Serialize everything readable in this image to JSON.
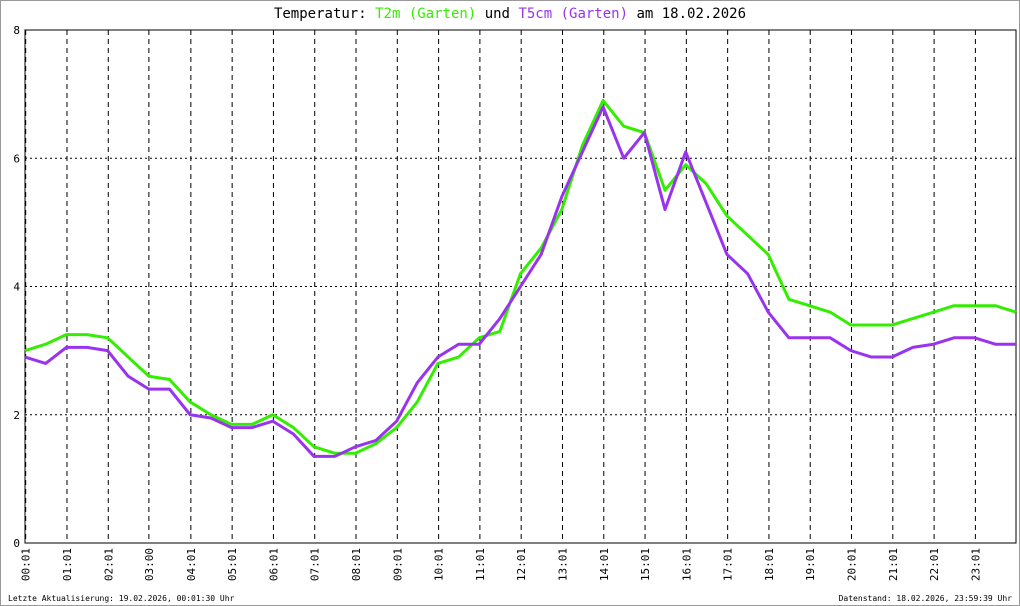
{
  "chart_data": {
    "type": "line",
    "title_prefix": "Temperatur:",
    "title_joiner": "und",
    "title_suffix": "am 18.02.2026",
    "footer_left": "Letzte Aktualisierung: 19.02.2026, 00:01:30 Uhr",
    "footer_right": "Datenstand: 18.02.2026, 23:59:39 Uhr",
    "x": [
      0,
      30,
      60,
      90,
      120,
      150,
      180,
      210,
      240,
      270,
      300,
      330,
      360,
      390,
      420,
      450,
      480,
      510,
      540,
      570,
      600,
      630,
      660,
      690,
      720,
      750,
      780,
      810,
      840,
      870,
      900,
      930,
      960,
      990,
      1020,
      1050,
      1080,
      1110,
      1140,
      1170,
      1200,
      1230,
      1260,
      1290,
      1320,
      1350,
      1380,
      1410,
      1440
    ],
    "series": [
      {
        "name": "T2m (Garten)",
        "color": "#33ee00",
        "values": [
          3.0,
          3.1,
          3.25,
          3.25,
          3.2,
          2.9,
          2.6,
          2.55,
          2.2,
          2.0,
          1.85,
          1.85,
          2.0,
          1.8,
          1.5,
          1.4,
          1.4,
          1.55,
          1.8,
          2.2,
          2.8,
          2.9,
          3.2,
          3.3,
          4.2,
          4.6,
          5.2,
          6.2,
          6.9,
          6.5,
          6.4,
          5.5,
          5.9,
          5.6,
          5.1,
          4.8,
          4.5,
          3.8,
          3.7,
          3.6,
          3.4,
          3.4,
          3.4,
          3.5,
          3.6,
          3.7,
          3.7,
          3.7,
          3.6
        ]
      },
      {
        "name": "T5cm (Garten)",
        "color": "#9933ee",
        "values": [
          2.9,
          2.8,
          3.05,
          3.05,
          3.0,
          2.6,
          2.4,
          2.4,
          2.0,
          1.95,
          1.8,
          1.8,
          1.9,
          1.7,
          1.35,
          1.35,
          1.5,
          1.6,
          1.9,
          2.5,
          2.9,
          3.1,
          3.1,
          3.5,
          4.0,
          4.5,
          5.4,
          6.1,
          6.8,
          6.0,
          6.4,
          5.2,
          6.1,
          5.3,
          4.5,
          4.2,
          3.6,
          3.2,
          3.2,
          3.2,
          3.0,
          2.9,
          2.9,
          3.05,
          3.1,
          3.2,
          3.2,
          3.1,
          3.1
        ]
      }
    ],
    "xlim": [
      0,
      1440
    ],
    "xticks": [
      {
        "value": 1,
        "label": "00:01"
      },
      {
        "value": 61,
        "label": "01:01"
      },
      {
        "value": 121,
        "label": "02:01"
      },
      {
        "value": 180,
        "label": "03:00"
      },
      {
        "value": 241,
        "label": "04:01"
      },
      {
        "value": 301,
        "label": "05:01"
      },
      {
        "value": 361,
        "label": "06:01"
      },
      {
        "value": 421,
        "label": "07:01"
      },
      {
        "value": 481,
        "label": "08:01"
      },
      {
        "value": 541,
        "label": "09:01"
      },
      {
        "value": 601,
        "label": "10:01"
      },
      {
        "value": 661,
        "label": "11:01"
      },
      {
        "value": 721,
        "label": "12:01"
      },
      {
        "value": 781,
        "label": "13:01"
      },
      {
        "value": 841,
        "label": "14:01"
      },
      {
        "value": 901,
        "label": "15:01"
      },
      {
        "value": 961,
        "label": "16:01"
      },
      {
        "value": 1021,
        "label": "17:01"
      },
      {
        "value": 1081,
        "label": "18:01"
      },
      {
        "value": 1141,
        "label": "19:01"
      },
      {
        "value": 1201,
        "label": "20:01"
      },
      {
        "value": 1261,
        "label": "21:01"
      },
      {
        "value": 1321,
        "label": "22:01"
      },
      {
        "value": 1381,
        "label": "23:01"
      }
    ],
    "ylim": [
      0,
      8
    ],
    "yticks": [
      0,
      2,
      4,
      6,
      8
    ],
    "grid": true
  }
}
